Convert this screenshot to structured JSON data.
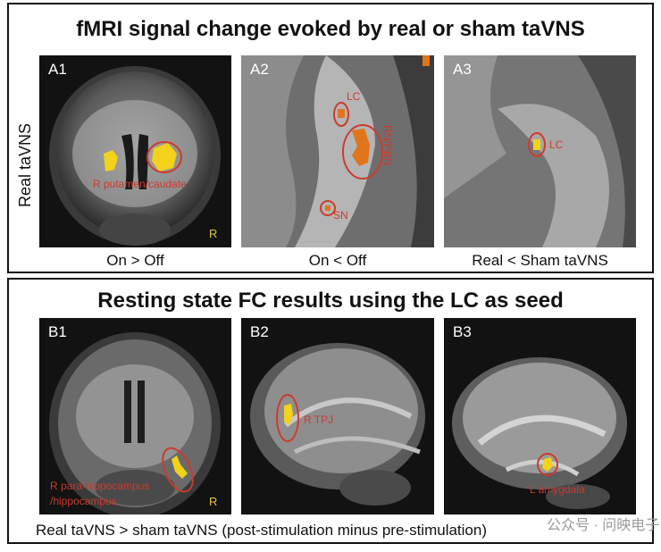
{
  "section_a": {
    "title": "fMRI signal change evoked by real or sham taVNS",
    "row_label": "Real taVNS",
    "panels": [
      {
        "id": "A1",
        "caption": "On > Off",
        "annotations": [
          "R putamen/caudate"
        ],
        "orientation_mark": "R"
      },
      {
        "id": "A2",
        "caption": "On < Off",
        "annotations": [
          "LC",
          "RN/PBN",
          "SN"
        ]
      },
      {
        "id": "A3",
        "caption": "Real < Sham taVNS",
        "annotations": [
          "LC"
        ]
      }
    ]
  },
  "section_b": {
    "title": "Resting state FC results using the LC as seed",
    "panels": [
      {
        "id": "B1",
        "annotations": [
          "R para-hippocampus",
          "/hippocampus"
        ],
        "orientation_mark": "R"
      },
      {
        "id": "B2",
        "annotations": [
          "R TPJ"
        ]
      },
      {
        "id": "B3",
        "annotations": [
          "L amygdala"
        ]
      }
    ],
    "caption": "Real taVNS > sham taVNS (post-stimulation minus pre-stimulation)"
  },
  "watermark": "公众号 · 问映电子",
  "colors": {
    "annotation": "#cc3b2e",
    "activation": "#f2d21b",
    "activation_hot": "#e0751c",
    "panel_bg": "#121212"
  }
}
